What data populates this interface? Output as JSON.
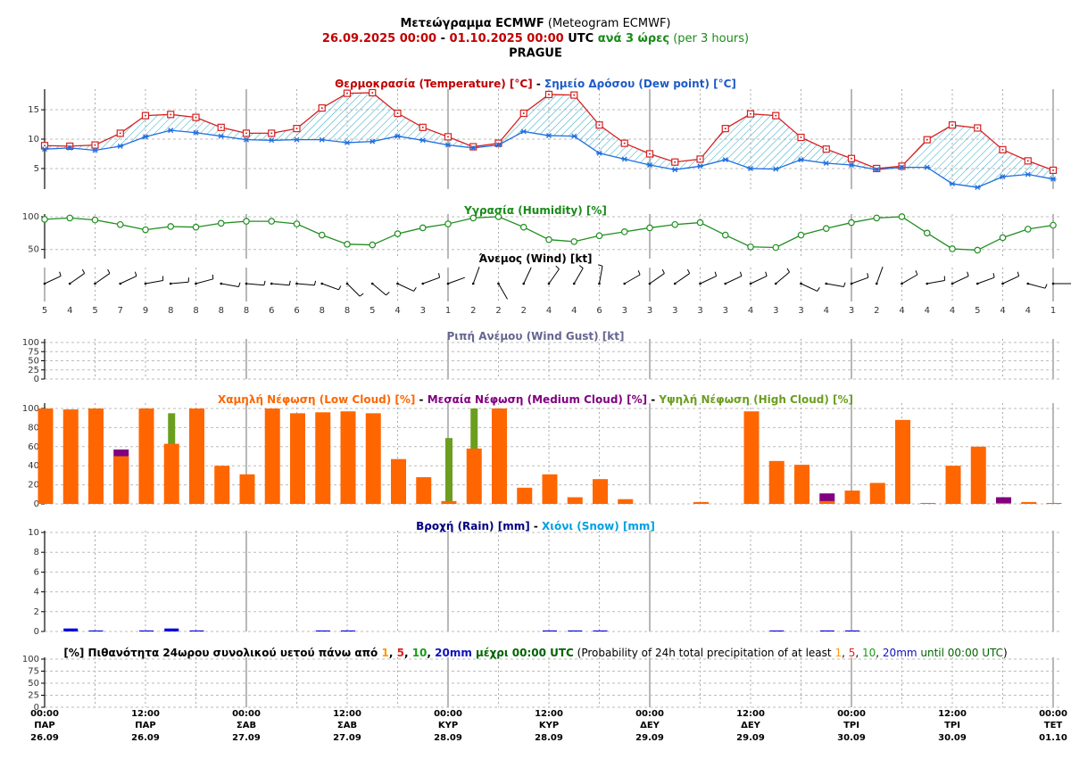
{
  "header": {
    "title": [
      {
        "text": "Μετεώγραμμα ECMWF",
        "bold": true
      },
      {
        "text": " (Meteogram ECMWF)"
      }
    ],
    "subtitle": [
      {
        "text": "26.09.2025 00:00",
        "bold": true,
        "color": "#c00000"
      },
      {
        "text": " - ",
        "bold": true
      },
      {
        "text": "01.10.2025 00:00",
        "bold": true,
        "color": "#c00000"
      },
      {
        "text": " UTC ",
        "bold": true
      },
      {
        "text": "ανά 3 ώρες",
        "bold": true,
        "color": "#1a8a1a"
      },
      {
        "text": " (per 3 hours)",
        "color": "#1a8a1a"
      }
    ],
    "location": "PRAGUE"
  },
  "time_axis": {
    "labels": [
      {
        "time": "00:00",
        "day": "ΠΑΡ",
        "date": "26.09"
      },
      {
        "time": "12:00",
        "day": "ΠΑΡ",
        "date": "26.09"
      },
      {
        "time": "00:00",
        "day": "ΣΑΒ",
        "date": "27.09"
      },
      {
        "time": "12:00",
        "day": "ΣΑΒ",
        "date": "27.09"
      },
      {
        "time": "00:00",
        "day": "ΚΥΡ",
        "date": "28.09"
      },
      {
        "time": "12:00",
        "day": "ΚΥΡ",
        "date": "28.09"
      },
      {
        "time": "00:00",
        "day": "ΔΕΥ",
        "date": "29.09"
      },
      {
        "time": "12:00",
        "day": "ΔΕΥ",
        "date": "29.09"
      },
      {
        "time": "00:00",
        "day": "ΤΡΙ",
        "date": "30.09"
      },
      {
        "time": "12:00",
        "day": "ΤΡΙ",
        "date": "30.09"
      },
      {
        "time": "00:00",
        "day": "ΤΕΤ",
        "date": "01.10"
      }
    ]
  },
  "chart_data": [
    {
      "type": "line",
      "title": [
        {
          "text": "Θερμοκρασία (Temperature) [°C]",
          "bold": true,
          "color": "#c00000"
        },
        {
          "text": " - ",
          "bold": true
        },
        {
          "text": "Σημείο Δρόσου (Dew point) [°C]",
          "bold": true,
          "color": "#1e5bc6"
        }
      ],
      "ylim": [
        1.5,
        18.5
      ],
      "yticks": [
        5,
        10,
        15
      ],
      "grid": true,
      "fill_between": "#2aa6c6",
      "series": [
        {
          "color": "#d62020",
          "marker": "square",
          "values": [
            8.9,
            8.8,
            9.0,
            11.0,
            14.0,
            14.2,
            13.7,
            12.0,
            11.0,
            11.0,
            11.8,
            15.3,
            17.8,
            17.9,
            14.4,
            12.0,
            10.4,
            8.7,
            9.3,
            14.4,
            17.6,
            17.5,
            12.4,
            9.3,
            7.5,
            6.1,
            6.6,
            11.8,
            14.3,
            14.0,
            10.3,
            8.3,
            6.7,
            5.0,
            5.4,
            9.9,
            12.4,
            11.9,
            8.2,
            6.3,
            4.7
          ]
        },
        {
          "color": "#1e6fe0",
          "marker": "star",
          "values": [
            8.3,
            8.5,
            8.1,
            8.8,
            10.4,
            11.5,
            11.1,
            10.5,
            9.9,
            9.8,
            9.9,
            9.9,
            9.4,
            9.6,
            10.5,
            9.8,
            9.0,
            8.5,
            9.0,
            11.3,
            10.6,
            10.5,
            7.6,
            6.6,
            5.6,
            4.8,
            5.4,
            6.5,
            5.0,
            4.9,
            6.5,
            5.9,
            5.6,
            4.8,
            5.2,
            5.2,
            2.4,
            1.8,
            3.6,
            4.0,
            3.2
          ]
        }
      ]
    },
    {
      "type": "line",
      "title": [
        {
          "text": "Υγρασία (Humidity) [%]",
          "bold": true,
          "color": "#1a8a1a"
        }
      ],
      "ylim": [
        36,
        104
      ],
      "yticks": [
        50,
        100
      ],
      "grid": true,
      "series": [
        {
          "color": "#1f8f1f",
          "marker": "circle",
          "values": [
            96,
            98,
            95,
            88,
            80,
            85,
            84,
            90,
            93,
            93,
            89,
            72,
            58,
            57,
            74,
            83,
            89,
            98,
            100,
            84,
            65,
            62,
            71,
            77,
            83,
            88,
            91,
            72,
            54,
            53,
            72,
            82,
            91,
            98,
            100,
            75,
            51,
            49,
            68,
            81,
            87
          ]
        }
      ]
    },
    {
      "type": "wind",
      "title": [
        {
          "text": "Άνεμος (Wind) [kt]",
          "bold": true
        }
      ],
      "speed": [
        5,
        4,
        5,
        7,
        9,
        8,
        8,
        8,
        8,
        6,
        6,
        8,
        8,
        5,
        4,
        3,
        1,
        2,
        2,
        2,
        4,
        4,
        6,
        3,
        3,
        3,
        3,
        3,
        4,
        3,
        3,
        4,
        3,
        2,
        4,
        4,
        4,
        5,
        4,
        4,
        1
      ],
      "direction": [
        65,
        55,
        55,
        65,
        80,
        85,
        75,
        100,
        95,
        95,
        95,
        110,
        135,
        130,
        115,
        70,
        70,
        20,
        150,
        25,
        35,
        30,
        10,
        60,
        55,
        55,
        65,
        65,
        65,
        50,
        115,
        100,
        70,
        20,
        60,
        80,
        65,
        70,
        65,
        105,
        90
      ]
    },
    {
      "type": "bar",
      "title": [
        {
          "text": "Ριπή Ανέμου (Wind Gust) [kt]",
          "bold": true,
          "color": "#66668f"
        }
      ],
      "ylim": [
        0,
        100
      ],
      "yticks": [
        0,
        25,
        50,
        75,
        100
      ],
      "grid": true,
      "series": []
    },
    {
      "type": "bar",
      "title": [
        {
          "text": "Χαμηλή Νέφωση (Low Cloud) [%]",
          "bold": true,
          "color": "#ff6600"
        },
        {
          "text": " - ",
          "bold": true
        },
        {
          "text": "Μεσαία Νέφωση (Medium Cloud) [%]",
          "bold": true,
          "color": "#800080"
        },
        {
          "text": " - ",
          "bold": true
        },
        {
          "text": "Υψηλή Νέφωση (High Cloud) [%]",
          "bold": true,
          "color": "#6b9e1f"
        }
      ],
      "ylim": [
        0,
        100
      ],
      "yticks": [
        0,
        20,
        40,
        60,
        80,
        100
      ],
      "grid": true,
      "series": [
        {
          "color": "#ff6600",
          "values": [
            100,
            99,
            100,
            50,
            100,
            63,
            100,
            40,
            31,
            100,
            95,
            96,
            97,
            95,
            47,
            28,
            3,
            58,
            100,
            17,
            31,
            7,
            26,
            5,
            0,
            0,
            2,
            0,
            97,
            45,
            41,
            3,
            14,
            22,
            88,
            1,
            40,
            60,
            1,
            2,
            1
          ]
        },
        {
          "color": "#800080",
          "values": [
            0,
            0,
            0,
            57,
            0,
            0,
            0,
            0,
            0,
            0,
            0,
            0,
            0,
            0,
            0,
            0,
            0,
            0,
            0,
            0,
            0,
            0,
            0,
            0,
            0,
            0,
            0,
            0,
            0,
            0,
            0,
            11,
            0,
            0,
            0,
            0,
            0,
            0,
            7,
            0,
            0
          ]
        },
        {
          "color": "#6b9e1f",
          "values": [
            0,
            0,
            0,
            0,
            0,
            95,
            0,
            0,
            0,
            0,
            0,
            0,
            0,
            0,
            0,
            0,
            69,
            100,
            0,
            0,
            0,
            0,
            0,
            0,
            0,
            0,
            0,
            0,
            0,
            0,
            0,
            0,
            0,
            0,
            0,
            0,
            0,
            0,
            0,
            0,
            0
          ]
        }
      ]
    },
    {
      "type": "bar",
      "title": [
        {
          "text": "Βροχή (Rain) [mm]",
          "bold": true,
          "color": "#000080"
        },
        {
          "text": " - ",
          "bold": true
        },
        {
          "text": "Χιόνι (Snow) [mm]",
          "bold": true,
          "color": "#00a0e0"
        }
      ],
      "ylim": [
        0,
        10
      ],
      "yticks": [
        0,
        2,
        4,
        6,
        8,
        10
      ],
      "grid": true,
      "series": [
        {
          "color": "#0000dd",
          "values": [
            0,
            0.3,
            0.1,
            0,
            0.1,
            0.3,
            0.1,
            0,
            0,
            0,
            0,
            0.1,
            0.1,
            0,
            0,
            0,
            0,
            0,
            0,
            0,
            0.1,
            0.1,
            0.1,
            0,
            0,
            0,
            0,
            0,
            0,
            0.1,
            0,
            0.1,
            0.1,
            0,
            0,
            0,
            0,
            0,
            0,
            0,
            0
          ]
        },
        {
          "color": "#00a0e0",
          "values": [
            0,
            0,
            0,
            0,
            0,
            0,
            0,
            0,
            0,
            0,
            0,
            0,
            0,
            0,
            0,
            0,
            0,
            0,
            0,
            0,
            0,
            0,
            0,
            0,
            0,
            0,
            0,
            0,
            0,
            0,
            0,
            0,
            0,
            0,
            0,
            0,
            0,
            0,
            0,
            0,
            0
          ]
        }
      ]
    },
    {
      "type": "bar",
      "title": [
        {
          "text": "[%] Πιθανότητα 24ωρου συνολικού υετού πάνω από ",
          "bold": true
        },
        {
          "text": "1",
          "bold": true,
          "color": "#ff9900"
        },
        {
          "text": ", ",
          "bold": true
        },
        {
          "text": "5",
          "bold": true,
          "color": "#e02020"
        },
        {
          "text": ", ",
          "bold": true
        },
        {
          "text": "10",
          "bold": true,
          "color": "#1a9a1a"
        },
        {
          "text": ", ",
          "bold": true
        },
        {
          "text": "20mm",
          "bold": true,
          "color": "#1010c0"
        },
        {
          "text": " μέχρι 00:00 UTC",
          "bold": true,
          "color": "#006400"
        },
        {
          "text": " (Probability of 24h total precipitation of at least "
        },
        {
          "text": "1",
          "color": "#ff9900"
        },
        {
          "text": ", "
        },
        {
          "text": "5",
          "color": "#e02020"
        },
        {
          "text": ", "
        },
        {
          "text": "10",
          "color": "#1a9a1a"
        },
        {
          "text": ", "
        },
        {
          "text": "20mm",
          "color": "#1010c0"
        },
        {
          "text": " until 00:00 UTC",
          "color": "#006400"
        },
        {
          "text": ")"
        }
      ],
      "ylim": [
        0,
        100
      ],
      "yticks": [
        0,
        25,
        50,
        75,
        100
      ],
      "grid": true,
      "series": []
    }
  ]
}
